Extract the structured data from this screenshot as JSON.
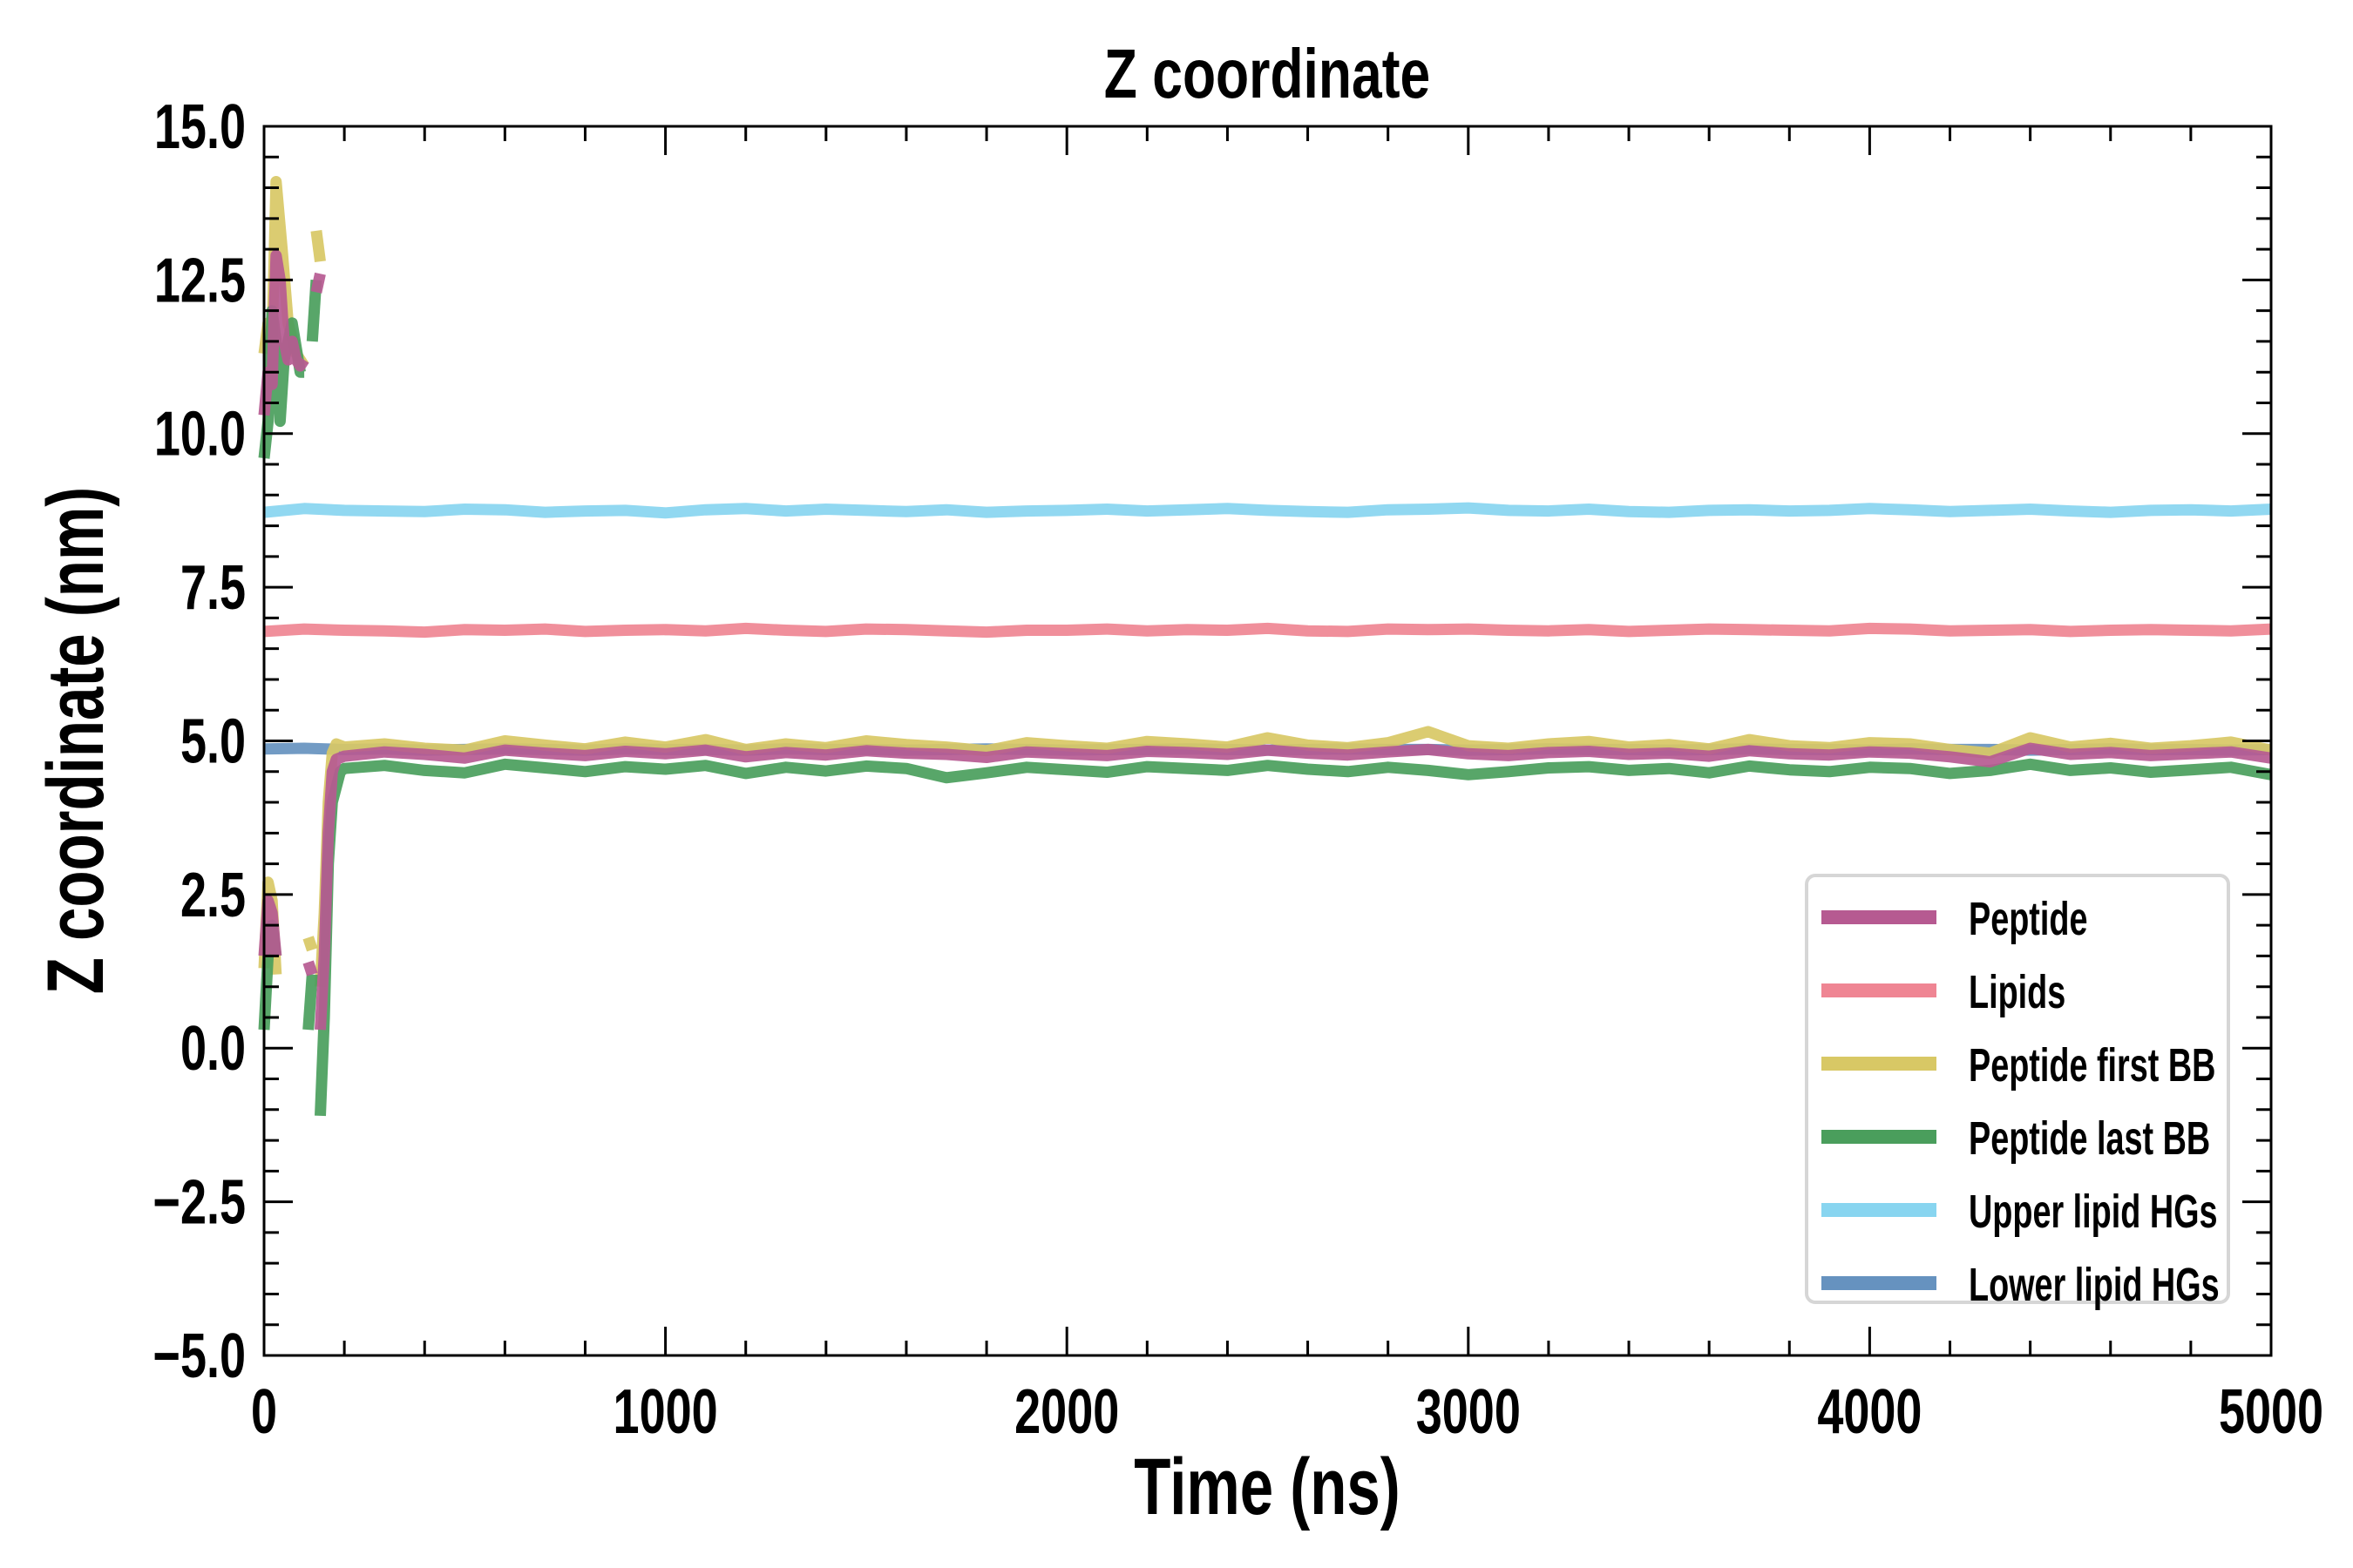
{
  "chart_data": {
    "type": "line",
    "title": "Z coordinate",
    "xlabel": "Time (ns)",
    "ylabel": "Z coordinate (nm)",
    "xlim": [
      0,
      5000
    ],
    "ylim": [
      -5,
      15
    ],
    "xticks": [
      0,
      1000,
      2000,
      3000,
      4000,
      5000
    ],
    "xtick_labels": [
      "0",
      "1000",
      "2000",
      "3000",
      "4000",
      "5000"
    ],
    "yticks": [
      -5,
      -2.5,
      0,
      2.5,
      5,
      7.5,
      10,
      12.5,
      15
    ],
    "ytick_labels": [
      "−5.0",
      "−2.5",
      "0.0",
      "2.5",
      "5.0",
      "7.5",
      "10.0",
      "12.5",
      "15.0"
    ],
    "grid": false,
    "legend_position": "lower-right",
    "late_step": 100,
    "series": [
      {
        "name": "Upper lipid HGs",
        "color": "#88d5f0",
        "legend_index": 4,
        "segments": [],
        "late_start": 0,
        "late_values": [
          8.72,
          8.78,
          8.75,
          8.74,
          8.73,
          8.77,
          8.76,
          8.72,
          8.74,
          8.75,
          8.71,
          8.76,
          8.78,
          8.74,
          8.77,
          8.75,
          8.73,
          8.76,
          8.72,
          8.74,
          8.75,
          8.77,
          8.74,
          8.76,
          8.78,
          8.75,
          8.73,
          8.72,
          8.76,
          8.77,
          8.79,
          8.75,
          8.74,
          8.77,
          8.73,
          8.72,
          8.75,
          8.76,
          8.74,
          8.75,
          8.78,
          8.76,
          8.73,
          8.75,
          8.77,
          8.74,
          8.72,
          8.75,
          8.76,
          8.74,
          8.77
        ]
      },
      {
        "name": "Lipids",
        "color": "#ef8593",
        "legend_index": 1,
        "segments": [],
        "late_start": 0,
        "late_values": [
          6.78,
          6.82,
          6.8,
          6.79,
          6.77,
          6.81,
          6.8,
          6.82,
          6.78,
          6.8,
          6.81,
          6.79,
          6.83,
          6.8,
          6.78,
          6.82,
          6.81,
          6.79,
          6.77,
          6.8,
          6.8,
          6.82,
          6.79,
          6.81,
          6.8,
          6.83,
          6.79,
          6.78,
          6.82,
          6.81,
          6.82,
          6.8,
          6.79,
          6.81,
          6.78,
          6.8,
          6.82,
          6.81,
          6.8,
          6.79,
          6.83,
          6.82,
          6.79,
          6.8,
          6.81,
          6.78,
          6.8,
          6.81,
          6.8,
          6.79,
          6.82
        ]
      },
      {
        "name": "Lower lipid HGs",
        "color": "#6692bf",
        "legend_index": 5,
        "segments": [],
        "late_start": 0,
        "late_values": [
          4.87,
          4.88,
          4.86,
          4.87,
          4.85,
          4.86,
          4.87,
          4.86,
          4.85,
          4.87,
          4.86,
          4.86,
          4.85,
          4.87,
          4.86,
          4.86,
          4.85,
          4.86,
          4.87,
          4.86,
          4.85,
          4.86,
          4.86,
          4.87,
          4.86,
          4.85,
          4.86,
          4.87,
          4.86,
          4.86,
          4.85,
          4.86,
          4.87,
          4.86,
          4.86,
          4.85,
          4.86,
          4.87,
          4.86,
          4.86,
          4.85,
          4.87,
          4.86,
          4.86,
          4.85,
          4.86,
          4.87,
          4.86,
          4.86,
          4.85,
          4.86
        ]
      },
      {
        "name": "Peptide first BB",
        "color": "#d8c865",
        "legend_index": 2,
        "segments": [
          [
            [
              0,
              11.3
            ],
            [
              10,
              11.8
            ],
            [
              20,
              11.5
            ],
            [
              30,
              14.1
            ],
            [
              45,
              13.0
            ],
            [
              60,
              11.8
            ],
            [
              80,
              11.3
            ],
            [
              100,
              11.1
            ]
          ],
          [
            [
              130,
              13.3
            ],
            [
              140,
              12.8
            ]
          ],
          [
            [
              0,
              1.3
            ],
            [
              10,
              2.7
            ],
            [
              20,
              2.4
            ],
            [
              30,
              1.2
            ]
          ],
          [
            [
              110,
              1.8
            ],
            [
              120,
              1.6
            ]
          ],
          [
            [
              140,
              1.0
            ],
            [
              150,
              2.2
            ],
            [
              160,
              4.0
            ],
            [
              170,
              4.8
            ],
            [
              180,
              4.95
            ]
          ]
        ],
        "late_start": 200,
        "late_values": [
          4.9,
          4.95,
          4.88,
          4.85,
          5.0,
          4.93,
          4.87,
          4.98,
          4.9,
          5.02,
          4.86,
          4.95,
          4.89,
          5.0,
          4.94,
          4.9,
          4.84,
          4.97,
          4.92,
          4.88,
          4.99,
          4.95,
          4.9,
          5.05,
          4.93,
          4.89,
          4.97,
          5.15,
          4.92,
          4.88,
          4.95,
          4.99,
          4.9,
          4.94,
          4.87,
          5.02,
          4.92,
          4.89,
          4.97,
          4.95,
          4.86,
          4.8,
          5.05,
          4.9,
          4.96,
          4.88,
          4.92,
          4.98,
          4.85
        ]
      },
      {
        "name": "Peptide last BB",
        "color": "#4a9e5c",
        "legend_index": 3,
        "segments": [
          [
            [
              0,
              9.6
            ],
            [
              10,
              10.2
            ],
            [
              20,
              12.0
            ],
            [
              30,
              11.5
            ],
            [
              40,
              10.2
            ],
            [
              50,
              11.2
            ],
            [
              70,
              11.8
            ],
            [
              90,
              11.0
            ],
            [
              100,
              11.0
            ]
          ],
          [
            [
              120,
              11.5
            ],
            [
              130,
              12.5
            ]
          ],
          [
            [
              0,
              0.3
            ],
            [
              10,
              1.5
            ],
            [
              20,
              2.0
            ],
            [
              30,
              1.5
            ]
          ],
          [
            [
              110,
              0.3
            ],
            [
              120,
              1.2
            ]
          ],
          [
            [
              140,
              -1.1
            ],
            [
              150,
              0.5
            ],
            [
              160,
              3.0
            ],
            [
              170,
              4.0
            ],
            [
              190,
              4.5
            ]
          ]
        ],
        "late_start": 200,
        "late_values": [
          4.55,
          4.6,
          4.52,
          4.48,
          4.62,
          4.56,
          4.5,
          4.58,
          4.54,
          4.6,
          4.47,
          4.57,
          4.51,
          4.59,
          4.55,
          4.4,
          4.48,
          4.57,
          4.53,
          4.49,
          4.58,
          4.55,
          4.52,
          4.6,
          4.54,
          4.5,
          4.57,
          4.52,
          4.45,
          4.5,
          4.56,
          4.58,
          4.52,
          4.55,
          4.48,
          4.59,
          4.53,
          4.5,
          4.57,
          4.55,
          4.47,
          4.52,
          4.62,
          4.52,
          4.56,
          4.49,
          4.53,
          4.57,
          4.45
        ]
      },
      {
        "name": "Peptide",
        "color": "#b65a91",
        "legend_index": 0,
        "segments": [
          [
            [
              0,
              10.3
            ],
            [
              10,
              11.0
            ],
            [
              20,
              10.8
            ],
            [
              30,
              12.9
            ],
            [
              40,
              12.5
            ],
            [
              50,
              11.5
            ],
            [
              60,
              11.2
            ],
            [
              70,
              11.5
            ],
            [
              80,
              11.2
            ],
            [
              90,
              11.1
            ],
            [
              100,
              11.2
            ]
          ],
          [
            [
              130,
              12.3
            ],
            [
              140,
              12.6
            ]
          ],
          [
            [
              0,
              1.5
            ],
            [
              10,
              2.4
            ],
            [
              20,
              2.2
            ],
            [
              30,
              1.5
            ]
          ],
          [
            [
              110,
              1.4
            ],
            [
              120,
              1.2
            ]
          ],
          [
            [
              140,
              0.3
            ],
            [
              150,
              1.5
            ],
            [
              160,
              3.5
            ],
            [
              170,
              4.5
            ],
            [
              180,
              4.7
            ]
          ]
        ],
        "late_start": 200,
        "late_values": [
          4.75,
          4.82,
          4.78,
          4.72,
          4.85,
          4.8,
          4.76,
          4.83,
          4.79,
          4.85,
          4.74,
          4.81,
          4.77,
          4.84,
          4.8,
          4.78,
          4.73,
          4.82,
          4.79,
          4.76,
          4.83,
          4.81,
          4.78,
          4.85,
          4.8,
          4.77,
          4.82,
          4.86,
          4.79,
          4.76,
          4.81,
          4.83,
          4.78,
          4.8,
          4.75,
          4.84,
          4.79,
          4.77,
          4.82,
          4.8,
          4.74,
          4.66,
          4.88,
          4.78,
          4.81,
          4.76,
          4.79,
          4.82,
          4.72
        ]
      }
    ]
  }
}
